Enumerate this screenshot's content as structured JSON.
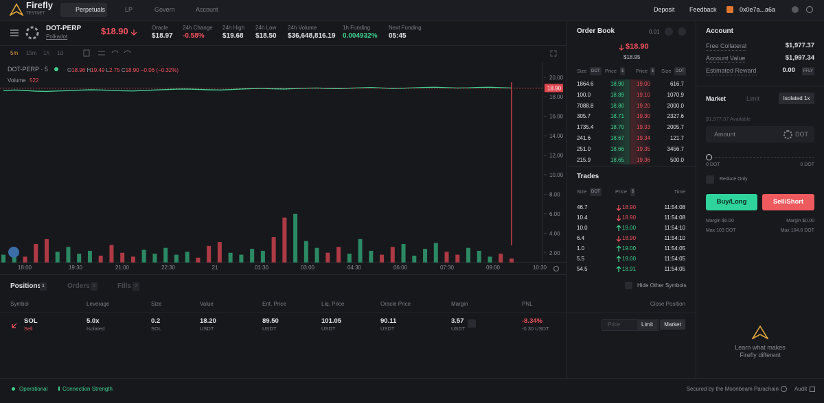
{
  "nav": {
    "brand": "Firefly",
    "brand_sub": "TESTNET",
    "tabs": [
      "Perpetuals",
      "LP",
      "Govern",
      "Account"
    ],
    "deposit": "Deposit",
    "feedback": "Feedback",
    "wallet": "0x0e7a...a6a"
  },
  "market": {
    "symbol": "DOT-PERP",
    "name": "Polkadot",
    "price": "$18.90",
    "price_color": "#f0525d",
    "stats": [
      {
        "label": "Oracle",
        "value": "$18.97"
      },
      {
        "label": "24h Change",
        "value": "-0.58%",
        "color": "#f0525d"
      },
      {
        "label": "24h High",
        "value": "$19.68"
      },
      {
        "label": "24h Low",
        "value": "$18.50"
      },
      {
        "label": "24h Volume",
        "value": "$36,648,816.19"
      },
      {
        "label": "1h Funding",
        "value": "0.004932%",
        "color": "#3fd08f"
      },
      {
        "label": "Next Funding",
        "value": "05:45"
      }
    ]
  },
  "toolbar": {
    "intervals": [
      "5m",
      "15m",
      "1h",
      "1d"
    ]
  },
  "chart_data": {
    "type": "line",
    "title": "DOT-PERP · 5",
    "legend": {
      "open_label": "O",
      "open": 18.96,
      "high_label": "H",
      "high": 19.49,
      "low_label": "L",
      "low": 2.75,
      "close_label": "C",
      "close": {
        "value": 18.9,
        "label": "18.90"
      },
      "change": "−0.06 (−0.32%)"
    },
    "volume_last": 522,
    "series": [
      {
        "color": "#3fd08f",
        "values": [
          18.62,
          18.7,
          18.65,
          18.58,
          18.55,
          18.6,
          18.63,
          18.68,
          18.72,
          18.7,
          18.66,
          18.62,
          18.6,
          18.64,
          18.7,
          18.74,
          18.78,
          18.8,
          18.76,
          18.72,
          18.7,
          18.74,
          18.8,
          18.84,
          18.86,
          18.82,
          18.8,
          18.85,
          18.88,
          18.9,
          18.86,
          18.84,
          18.88,
          18.92,
          18.95,
          18.9,
          18.86,
          18.88,
          18.92,
          18.96,
          18.98,
          18.94,
          18.9,
          18.92,
          18.96,
          18.98,
          18.94,
          18.9
        ]
      },
      {
        "name": "Volume",
        "values": [
          1.8,
          2.4,
          1.6,
          2.9,
          3.4,
          2.1,
          2.6,
          1.9,
          2.2,
          1.7,
          2.8,
          2.0,
          1.6,
          2.3,
          1.9,
          2.5,
          1.8,
          2.1,
          1.5,
          2.7,
          3.1,
          2.0,
          1.8,
          2.4,
          2.2,
          3.6,
          5.6,
          6.0,
          3.2,
          2.5,
          2.0,
          2.6,
          1.9,
          3.4,
          2.2,
          1.8,
          2.6,
          2.9,
          1.7,
          2.4,
          3.0,
          2.1,
          1.8,
          2.5,
          2.2,
          1.6,
          1.9,
          1.4
        ]
      }
    ],
    "up_color": "#2f9e70",
    "down_color": "#c8414b",
    "last_price": {
      "value": 18.9,
      "label": "18.90"
    },
    "ylim": [
      1.0,
      20.9
    ],
    "yticks": [
      {
        "value": 2,
        "label": "2.00"
      },
      {
        "value": 4,
        "label": "4.00"
      },
      {
        "value": 6,
        "label": "6.00"
      },
      {
        "value": 8,
        "label": "8.00"
      },
      {
        "value": 10,
        "label": "10.00"
      },
      {
        "value": 12,
        "label": "12.00"
      },
      {
        "value": 14,
        "label": "14.00"
      },
      {
        "value": 16,
        "label": "16.00"
      },
      {
        "value": 18,
        "label": "18.00"
      },
      {
        "value": 20,
        "label": "20.00"
      }
    ],
    "x_labels": [
      "18:00",
      "19:30",
      "21:00",
      "22:30",
      "21",
      "01:30",
      "03:00",
      "04:30",
      "06:00",
      "07:30",
      "09:00",
      "10:30"
    ]
  },
  "positions": {
    "tabs": [
      {
        "label": "Positions",
        "count": "1"
      },
      {
        "label": "Orders",
        "count": "2"
      },
      {
        "label": "Fills",
        "count": "2"
      }
    ],
    "hide_other": "Hide Other Symbols",
    "columns": [
      "Symbol",
      "Leverage",
      "Size",
      "Value",
      "Ent. Price",
      "Liq. Price",
      "Oracle Price",
      "Margin",
      "PNL",
      "Close Position"
    ],
    "rows": [
      {
        "cells": [
          [
            "SOL",
            "Sell"
          ],
          [
            "5.0x",
            "Isolated"
          ],
          [
            "0.2",
            "SOL"
          ],
          [
            "18.20",
            "USDT"
          ],
          [
            "89.50",
            "USDT"
          ],
          [
            "101.05",
            "USDT"
          ],
          [
            "90.11",
            "USDT"
          ],
          [
            "3.57",
            "USDT"
          ],
          [
            "-8.34%",
            "-0.30  USDT"
          ]
        ],
        "close": [
          "Price",
          "Limit",
          "Market"
        ]
      }
    ]
  },
  "order_book": {
    "title": "Order Book",
    "tick": "0.01",
    "mid": "$18.90",
    "mark": "$18.95",
    "headers": [
      [
        "Size",
        "DOT"
      ],
      [
        "Price",
        "$"
      ],
      [
        "Price",
        "$"
      ],
      [
        "Size",
        "DOT"
      ]
    ],
    "rows": [
      [
        "1864.6",
        "18.90",
        "19.00",
        "616.7"
      ],
      [
        "100.0",
        "18.89",
        "19.10",
        "1070.9"
      ],
      [
        "7088.8",
        "18.80",
        "19.20",
        "2000.0"
      ],
      [
        "305.7",
        "18.71",
        "19.30",
        "2327.6"
      ],
      [
        "1735.4",
        "18.70",
        "19.33",
        "2005.7"
      ],
      [
        "241.6",
        "18.67",
        "19.34",
        "121.7"
      ],
      [
        "251.0",
        "18.66",
        "19.35",
        "3456.7"
      ],
      [
        "215.9",
        "18.65",
        "19.36",
        "500.0"
      ]
    ]
  },
  "trades": {
    "title": "Trades",
    "headers": [
      [
        "Size",
        "DOT"
      ],
      [
        "Price",
        "$"
      ],
      [
        "Time"
      ]
    ],
    "rows": [
      {
        "size": "46.7",
        "price": "18.90",
        "time": "11:54:08",
        "direction": "down"
      },
      {
        "size": "10.4",
        "price": "18.90",
        "time": "11:54:08",
        "direction": "down"
      },
      {
        "size": "10.0",
        "price": "19.00",
        "time": "11:54:10",
        "direction": "up"
      },
      {
        "size": "6.4",
        "price": "18.90",
        "time": "11:54:10",
        "direction": "down"
      },
      {
        "size": "1.0",
        "price": "19.00",
        "time": "11:54:05",
        "direction": "up"
      },
      {
        "size": "5.5",
        "price": "19.00",
        "time": "11:54:05",
        "direction": "up"
      },
      {
        "size": "54.5",
        "price": "18.91",
        "time": "11:54:05",
        "direction": "up"
      }
    ]
  },
  "account": {
    "title": "Account",
    "rows": [
      {
        "label": "Free Collateral",
        "value": "$1,977.37"
      },
      {
        "label": "Account Value",
        "value": "$1,997.34"
      },
      {
        "label": "Estimated Reward",
        "value": "0.00",
        "unit": "FFLY"
      }
    ],
    "order_types": [
      "Market",
      "Limit"
    ],
    "margin_mode": "Isolated 1x",
    "available": "$1,977.37 Available",
    "amount": "Amount",
    "asset": "DOT",
    "slider_min": "0 DOT",
    "slider_max": "0 DOT",
    "reduce_only": "Reduce Only",
    "buy": "Buy/Long",
    "sell": "Sell/Short",
    "margin_buy": "Margin $0.00",
    "margin_sell": "Margin $0.00",
    "max_buy": "Max 103 DOT",
    "max_sell": "Max 104.6 DOT",
    "promo": [
      "Learn what makes",
      "Firefly different"
    ]
  },
  "footer": {
    "status": "Operational",
    "connection": "Connection Strength",
    "secured": "Secured by the Moonbeam Parachain",
    "audit": "Audit"
  }
}
